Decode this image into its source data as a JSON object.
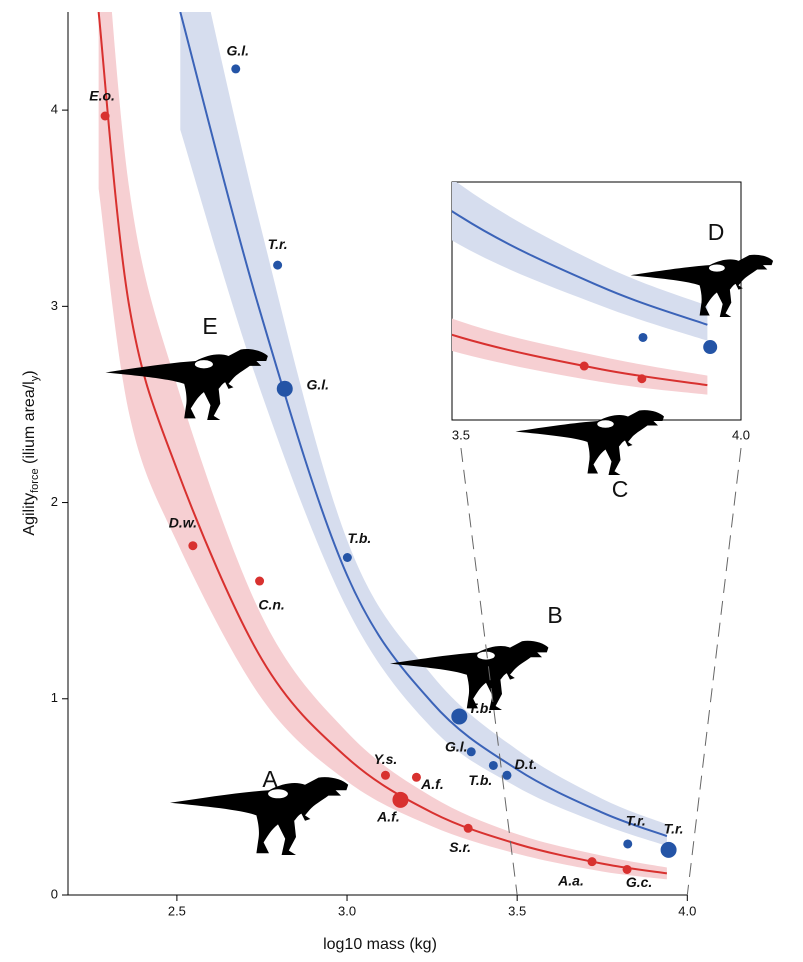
{
  "chart_data": {
    "type": "scatter",
    "x_label": "log10 mass (kg)",
    "y_label": [
      "Agility",
      "force",
      " (ilium area/l",
      "y",
      ")"
    ],
    "xlim": [
      2.18,
      4.34
    ],
    "ylim": [
      0,
      4.5
    ],
    "xticks": [
      2.5,
      {
        "value": 3,
        "label": "3.0"
      },
      3.5,
      {
        "value": 4,
        "label": "4.0"
      }
    ],
    "yticks": [
      0,
      1,
      2,
      3,
      4
    ],
    "series": [
      {
        "color": "#d8312f",
        "x": [
          2.289,
          2.547,
          2.743,
          3.113,
          3.204,
          3.157,
          3.356,
          3.72,
          3.823
        ],
        "values": [
          3.97,
          1.78,
          1.6,
          0.61,
          0.6,
          0.485,
          0.34,
          0.17,
          0.13
        ],
        "point_labels": [
          "E.o.",
          "D.w.",
          "C.n.",
          "Y.s.",
          "A.f.",
          "A.f.",
          "S.r.",
          "A.a.",
          "G.c."
        ],
        "large": [
          false,
          false,
          false,
          false,
          false,
          true,
          false,
          false,
          false
        ]
      },
      {
        "color": "#2454a6",
        "x": [
          2.673,
          2.796,
          2.817,
          3.001,
          3.33,
          3.365,
          3.43,
          3.47,
          3.825,
          3.945
        ],
        "values": [
          4.21,
          3.21,
          2.58,
          1.72,
          0.91,
          0.73,
          0.66,
          0.61,
          0.26,
          0.23
        ],
        "point_labels": [
          "G.l.",
          "T.r.",
          "G.l.",
          "T.b.",
          "T.b.",
          "G.l.",
          "T.b.",
          "D.t.",
          "T.r.",
          "T.r."
        ],
        "large": [
          false,
          false,
          true,
          false,
          true,
          false,
          false,
          false,
          false,
          true
        ]
      }
    ],
    "curves": [
      {
        "color": "#d8312f",
        "band_color": "#f6cfd2",
        "x": [
          2.27,
          2.36,
          2.5,
          2.75,
          3.0,
          3.25,
          3.5,
          3.75,
          3.94
        ],
        "values": [
          4.5,
          3.0,
          2.17,
          1.2,
          0.7,
          0.42,
          0.26,
          0.16,
          0.11
        ],
        "lower": [
          3.6,
          2.45,
          1.8,
          1.0,
          0.58,
          0.35,
          0.21,
          0.12,
          0.08
        ],
        "upper": [
          5.4,
          3.6,
          2.6,
          1.42,
          0.83,
          0.5,
          0.31,
          0.2,
          0.14
        ]
      },
      {
        "color": "#3b63b8",
        "band_color": "#d6ddee",
        "x": [
          2.51,
          2.74,
          3.0,
          3.25,
          3.5,
          3.75,
          3.94
        ],
        "values": [
          4.5,
          3.0,
          1.63,
          0.98,
          0.64,
          0.42,
          0.3
        ],
        "lower": [
          3.9,
          2.6,
          1.46,
          0.85,
          0.55,
          0.36,
          0.25
        ],
        "upper": [
          5.2,
          3.45,
          1.81,
          1.12,
          0.74,
          0.49,
          0.36
        ]
      }
    ],
    "inset": {
      "xlim": [
        3.484,
        4.0
      ],
      "ylim": [
        0,
        0.75
      ],
      "xticks": [
        3.5,
        {
          "value": 4,
          "label": "4.0"
        }
      ]
    },
    "annotations": [
      "A",
      "B",
      "C",
      "D",
      "E"
    ]
  }
}
